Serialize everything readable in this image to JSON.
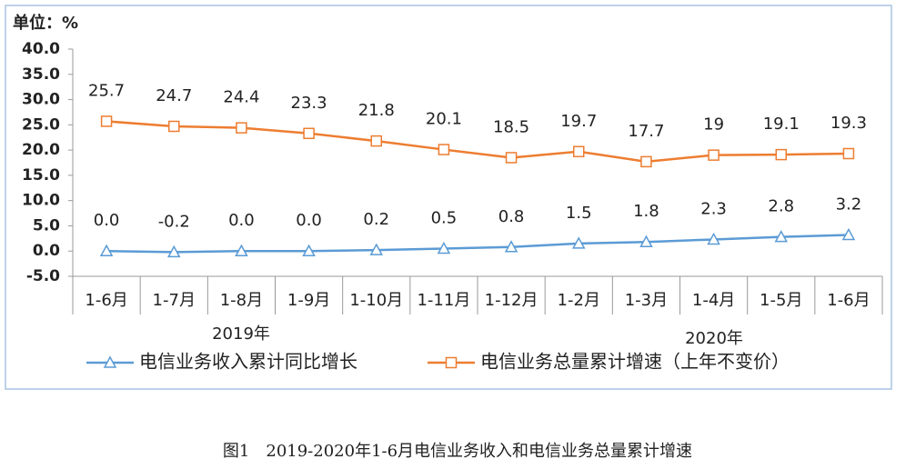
{
  "chart_data": {
    "type": "line",
    "ylabel": "单位：%",
    "categories": [
      "1-6月",
      "1-7月",
      "1-8月",
      "1-9月",
      "1-10月",
      "1-11月",
      "1-12月",
      "1-2月",
      "1-3月",
      "1-4月",
      "1-5月",
      "1-6月"
    ],
    "x_groups": [
      "2019年",
      "2020年"
    ],
    "series": [
      {
        "name": "电信业务收入累计同比增长",
        "color": "#5b9bd5",
        "marker": "triangle",
        "values": [
          0,
          -0.2,
          0,
          0,
          0.2,
          0.5,
          0.8,
          1.5,
          1.8,
          2.3,
          2.8,
          3.2
        ],
        "value_labels": [
          "0.0",
          "-0.2",
          "0.0",
          "0.0",
          "0.2",
          "0.5",
          "0.8",
          "1.5",
          "1.8",
          "2.3",
          "2.8",
          "3.2"
        ]
      },
      {
        "name": "电信业务总量累计增速（上年不变价）",
        "color": "#ed7d31",
        "marker": "square",
        "values": [
          25.7,
          24.7,
          24.4,
          23.3,
          21.8,
          20.1,
          18.5,
          19.7,
          17.7,
          19,
          19.1,
          19.3
        ]
      }
    ],
    "ylim": [
      -5,
      40
    ],
    "yticks": [
      {
        "value": -5,
        "label": "-5.0"
      },
      {
        "value": 0,
        "label": "0.0"
      },
      {
        "value": 5,
        "label": "5.0"
      },
      {
        "value": 10,
        "label": "10.0"
      },
      {
        "value": 15,
        "label": "15.0"
      },
      {
        "value": 20,
        "label": "20.0"
      },
      {
        "value": 25,
        "label": "25.0"
      },
      {
        "value": 30,
        "label": "30.0"
      },
      {
        "value": 35,
        "label": "35.0"
      },
      {
        "value": 40,
        "label": "40.0"
      }
    ],
    "grid": false,
    "caption": "图1　2019-2020年1-6月电信业务收入和电信业务总量累计增速"
  }
}
